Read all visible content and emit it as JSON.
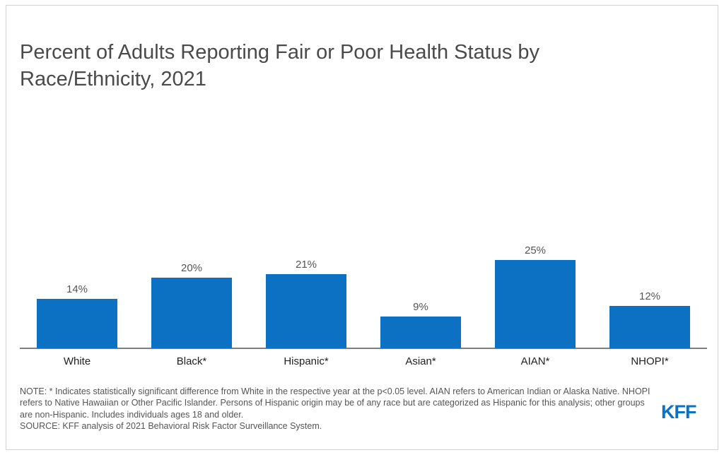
{
  "title": "Percent of Adults Reporting Fair or Poor Health Status by Race/Ethnicity, 2021",
  "chart_data": {
    "type": "bar",
    "categories": [
      "White",
      "Black*",
      "Hispanic*",
      "Asian*",
      "AIAN*",
      "NHOPI*"
    ],
    "values": [
      14,
      20,
      21,
      9,
      25,
      12
    ],
    "value_labels": [
      "14%",
      "20%",
      "21%",
      "9%",
      "25%",
      "12%"
    ],
    "title": "Percent of Adults Reporting Fair or Poor Health Status by Race/Ethnicity, 2021",
    "xlabel": "",
    "ylabel": "",
    "ylim": [
      0,
      40
    ],
    "grid": false,
    "bar_color": "#0c71c3"
  },
  "note": "NOTE: * Indicates statistically significant difference from White in the respective year at the p<0.05 level. AIAN refers to American Indian or Alaska Native. NHOPI refers to Native Hawaiian or Other Pacific Islander. Persons of Hispanic origin may be of any race but are categorized as Hispanic for this analysis; other groups are non-Hispanic. Includes individuals ages 18 and older.",
  "source": "SOURCE: KFF analysis of 2021 Behavioral Risk Factor Surveillance System.",
  "logo_text": "KFF"
}
